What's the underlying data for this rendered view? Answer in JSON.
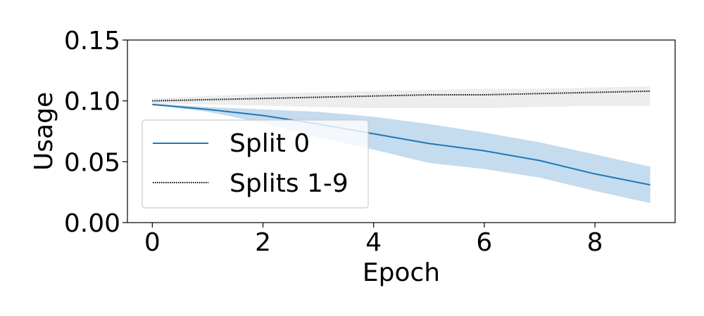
{
  "chart_data": {
    "type": "line",
    "xlabel": "Epoch",
    "ylabel": "Usage",
    "xlim": [
      -0.45,
      9.45
    ],
    "ylim": [
      0.0,
      0.15
    ],
    "x_ticks": [
      0,
      2,
      4,
      6,
      8
    ],
    "x_tick_labels": [
      "0",
      "2",
      "4",
      "6",
      "8"
    ],
    "y_ticks": [
      0.0,
      0.05,
      0.1,
      0.15
    ],
    "y_tick_labels": [
      "0.00",
      "0.05",
      "0.10",
      "0.15"
    ],
    "grid": false,
    "legend_position": "left",
    "x": [
      0,
      1,
      2,
      3,
      4,
      5,
      6,
      7,
      8,
      9
    ],
    "series": [
      {
        "name": "Split 0",
        "style": "solid",
        "color": "#1f77b4",
        "band_color": "#a6c8e5",
        "values": [
          0.097,
          0.093,
          0.088,
          0.081,
          0.073,
          0.065,
          0.059,
          0.051,
          0.04,
          0.031
        ],
        "lower": [
          0.097,
          0.091,
          0.082,
          0.07,
          0.06,
          0.049,
          0.044,
          0.037,
          0.026,
          0.016
        ],
        "upper": [
          0.098,
          0.095,
          0.093,
          0.091,
          0.087,
          0.081,
          0.074,
          0.066,
          0.056,
          0.046
        ]
      },
      {
        "name": "Splits 1-9",
        "style": "dotted",
        "color": "#000000",
        "band_color": "#cccccc",
        "values": [
          0.1,
          0.101,
          0.102,
          0.103,
          0.104,
          0.105,
          0.105,
          0.106,
          0.107,
          0.108
        ],
        "lower": [
          0.098,
          0.097,
          0.096,
          0.095,
          0.094,
          0.094,
          0.094,
          0.095,
          0.096,
          0.096
        ],
        "upper": [
          0.102,
          0.104,
          0.106,
          0.107,
          0.108,
          0.109,
          0.11,
          0.11,
          0.111,
          0.112
        ]
      }
    ]
  }
}
